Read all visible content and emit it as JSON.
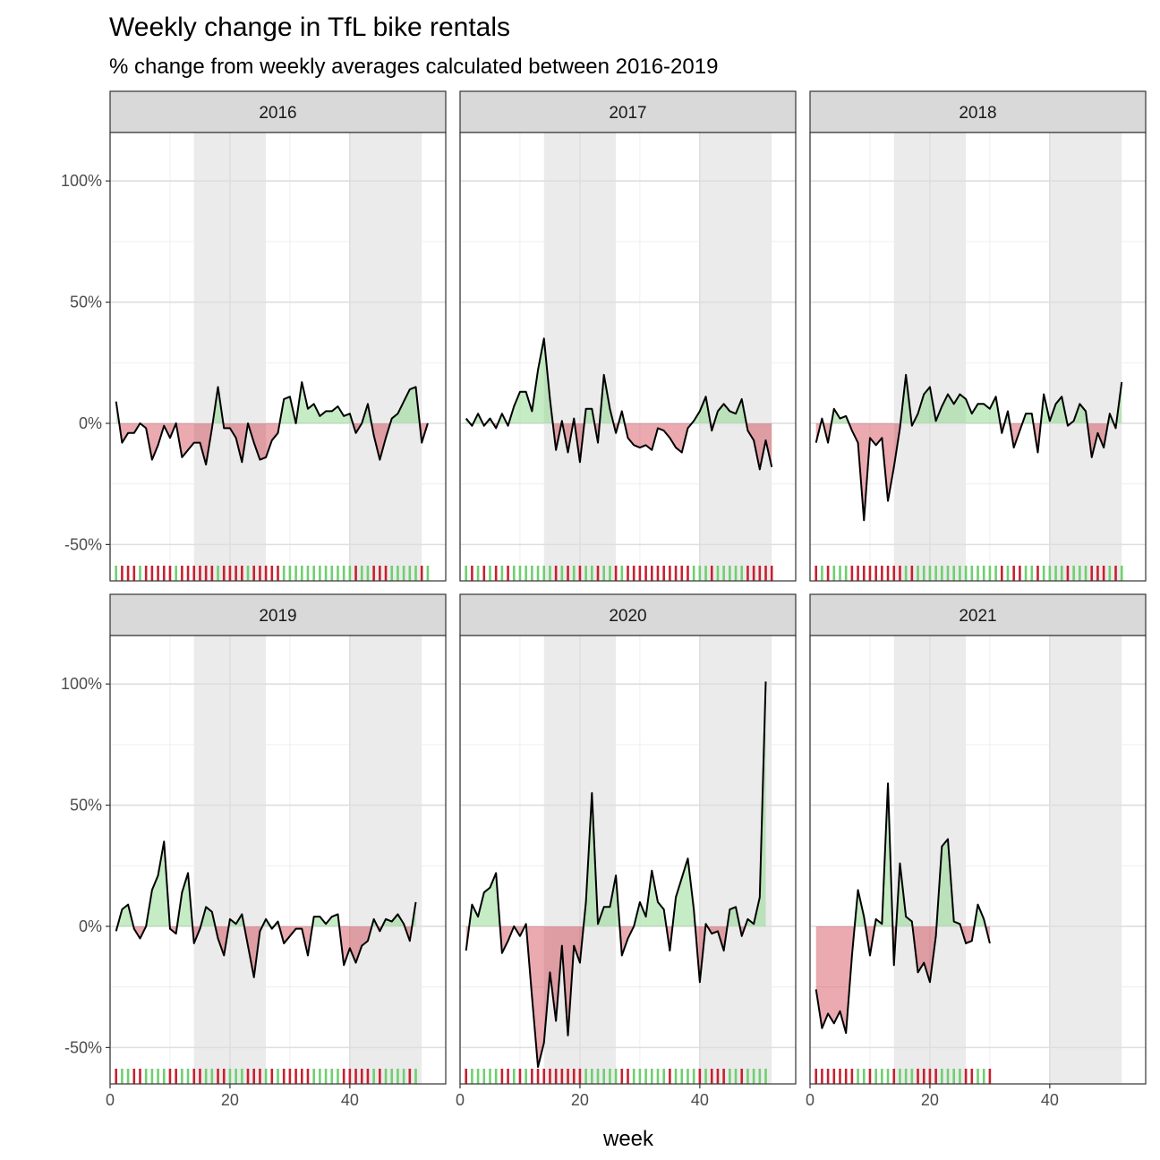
{
  "chart_data": {
    "type": "area",
    "title": "Weekly change in TfL bike rentals",
    "subtitle": "% change from weekly averages calculated between 2016-2019",
    "xlabel": "week",
    "ylabel": "",
    "xlim": [
      0,
      56
    ],
    "ylim": [
      -65,
      120
    ],
    "x_ticks": [
      0,
      20,
      40
    ],
    "x_tick_labels": [
      "0",
      "20",
      "40"
    ],
    "y_ticks": [
      -50,
      0,
      50,
      100
    ],
    "y_tick_labels": [
      "-50%",
      "0%",
      "50%",
      "100%"
    ],
    "grid": true,
    "shaded_week_ranges": [
      [
        14,
        26
      ],
      [
        40,
        52
      ]
    ],
    "colors": {
      "positive": "#7fd47f",
      "negative": "#c8202f",
      "line": "#000000",
      "shade": "#ebebeb",
      "strip": "#d9d9d9"
    },
    "panels": [
      {
        "label": "2016",
        "y": [
          9,
          -8,
          -4,
          -4,
          0,
          -2,
          -15,
          -9,
          -1,
          -6,
          0,
          -14,
          -11,
          -8,
          -8,
          -17,
          -2,
          15,
          -2,
          -2,
          -6,
          -16,
          0,
          -8,
          -15,
          -14,
          -7,
          -4,
          10,
          11,
          0,
          17,
          6,
          8,
          3,
          5,
          5,
          7,
          3,
          4,
          -4,
          0,
          8,
          -5,
          -15,
          -6,
          2,
          4,
          9,
          14,
          15,
          -8,
          0
        ]
      },
      {
        "label": "2017",
        "y": [
          2,
          -1,
          4,
          -1,
          2,
          -2,
          4,
          -1,
          7,
          13,
          13,
          5,
          22,
          35,
          10,
          -11,
          1,
          -12,
          2,
          -16,
          6,
          6,
          -8,
          20,
          6,
          -4,
          5,
          -6,
          -9,
          -10,
          -9,
          -11,
          -2,
          -3,
          -6,
          -10,
          -12,
          -2,
          1,
          5,
          11,
          -3,
          5,
          8,
          5,
          4,
          10,
          -3,
          -7,
          -19,
          -7,
          -18
        ]
      },
      {
        "label": "2018",
        "y": [
          -8,
          2,
          -8,
          6,
          2,
          3,
          -3,
          -8,
          -40,
          -6,
          -9,
          -6,
          -32,
          -18,
          -2,
          20,
          -1,
          4,
          12,
          15,
          1,
          7,
          12,
          8,
          12,
          10,
          4,
          8,
          8,
          6,
          11,
          -4,
          5,
          -10,
          -3,
          4,
          4,
          -12,
          12,
          1,
          8,
          11,
          -1,
          1,
          8,
          5,
          -14,
          -4,
          -10,
          4,
          -2,
          17
        ]
      },
      {
        "label": "2019",
        "y": [
          -2,
          7,
          9,
          -1,
          -5,
          0,
          15,
          21,
          35,
          -1,
          -3,
          14,
          22,
          -7,
          -1,
          8,
          6,
          -5,
          -12,
          3,
          1,
          5,
          -8,
          -21,
          -2,
          3,
          -1,
          2,
          -7,
          -4,
          -1,
          -1,
          -12,
          4,
          4,
          1,
          4,
          5,
          -16,
          -9,
          -15,
          -8,
          -6,
          3,
          -2,
          3,
          2,
          5,
          1,
          -6,
          10
        ]
      },
      {
        "label": "2020",
        "y": [
          -10,
          9,
          4,
          14,
          16,
          22,
          -11,
          -6,
          0,
          -4,
          1,
          -29,
          -58,
          -48,
          -19,
          -39,
          -8,
          -45,
          -8,
          -15,
          10,
          55,
          1,
          8,
          8,
          21,
          -12,
          -5,
          0,
          10,
          4,
          23,
          10,
          7,
          -10,
          12,
          20,
          28,
          7,
          -23,
          1,
          -3,
          -2,
          -10,
          7,
          8,
          -4,
          3,
          1,
          12,
          101
        ]
      },
      {
        "label": "2021",
        "y": [
          -26,
          -42,
          -36,
          -40,
          -35,
          -44,
          -12,
          15,
          4,
          -12,
          3,
          1,
          59,
          -16,
          26,
          4,
          2,
          -19,
          -15,
          -23,
          -4,
          33,
          36,
          2,
          1,
          -7,
          -6,
          9,
          3,
          -7
        ]
      }
    ]
  }
}
